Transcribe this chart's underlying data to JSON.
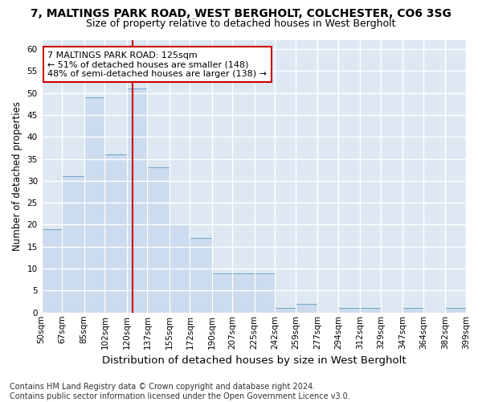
{
  "title": "7, MALTINGS PARK ROAD, WEST BERGHOLT, COLCHESTER, CO6 3SG",
  "subtitle": "Size of property relative to detached houses in West Bergholt",
  "xlabel": "Distribution of detached houses by size in West Bergholt",
  "ylabel": "Number of detached properties",
  "bin_edges": [
    50,
    67,
    85,
    102,
    120,
    137,
    155,
    172,
    190,
    207,
    225,
    242,
    259,
    277,
    294,
    312,
    329,
    347,
    364,
    382,
    399
  ],
  "counts": [
    19,
    31,
    49,
    36,
    51,
    33,
    20,
    17,
    9,
    9,
    9,
    1,
    2,
    0,
    1,
    1,
    0,
    1,
    0,
    1
  ],
  "bar_color": "#ccdcee",
  "bar_edge_color": "#7aaaca",
  "reference_line_x": 125,
  "reference_line_color": "#cc0000",
  "annotation_text": "7 MALTINGS PARK ROAD: 125sqm\n← 51% of detached houses are smaller (148)\n48% of semi-detached houses are larger (138) →",
  "annotation_box_color": "white",
  "annotation_box_edge_color": "#cc0000",
  "ylim": [
    0,
    62
  ],
  "yticks": [
    0,
    5,
    10,
    15,
    20,
    25,
    30,
    35,
    40,
    45,
    50,
    55,
    60
  ],
  "footer": "Contains HM Land Registry data © Crown copyright and database right 2024.\nContains public sector information licensed under the Open Government Licence v3.0.",
  "background_color": "#ffffff",
  "plot_background_color": "#dde8f3",
  "grid_color": "#ffffff",
  "title_fontsize": 10,
  "subtitle_fontsize": 9,
  "xlabel_fontsize": 9.5,
  "ylabel_fontsize": 8.5,
  "tick_fontsize": 7.5,
  "annotation_fontsize": 8,
  "footer_fontsize": 7
}
